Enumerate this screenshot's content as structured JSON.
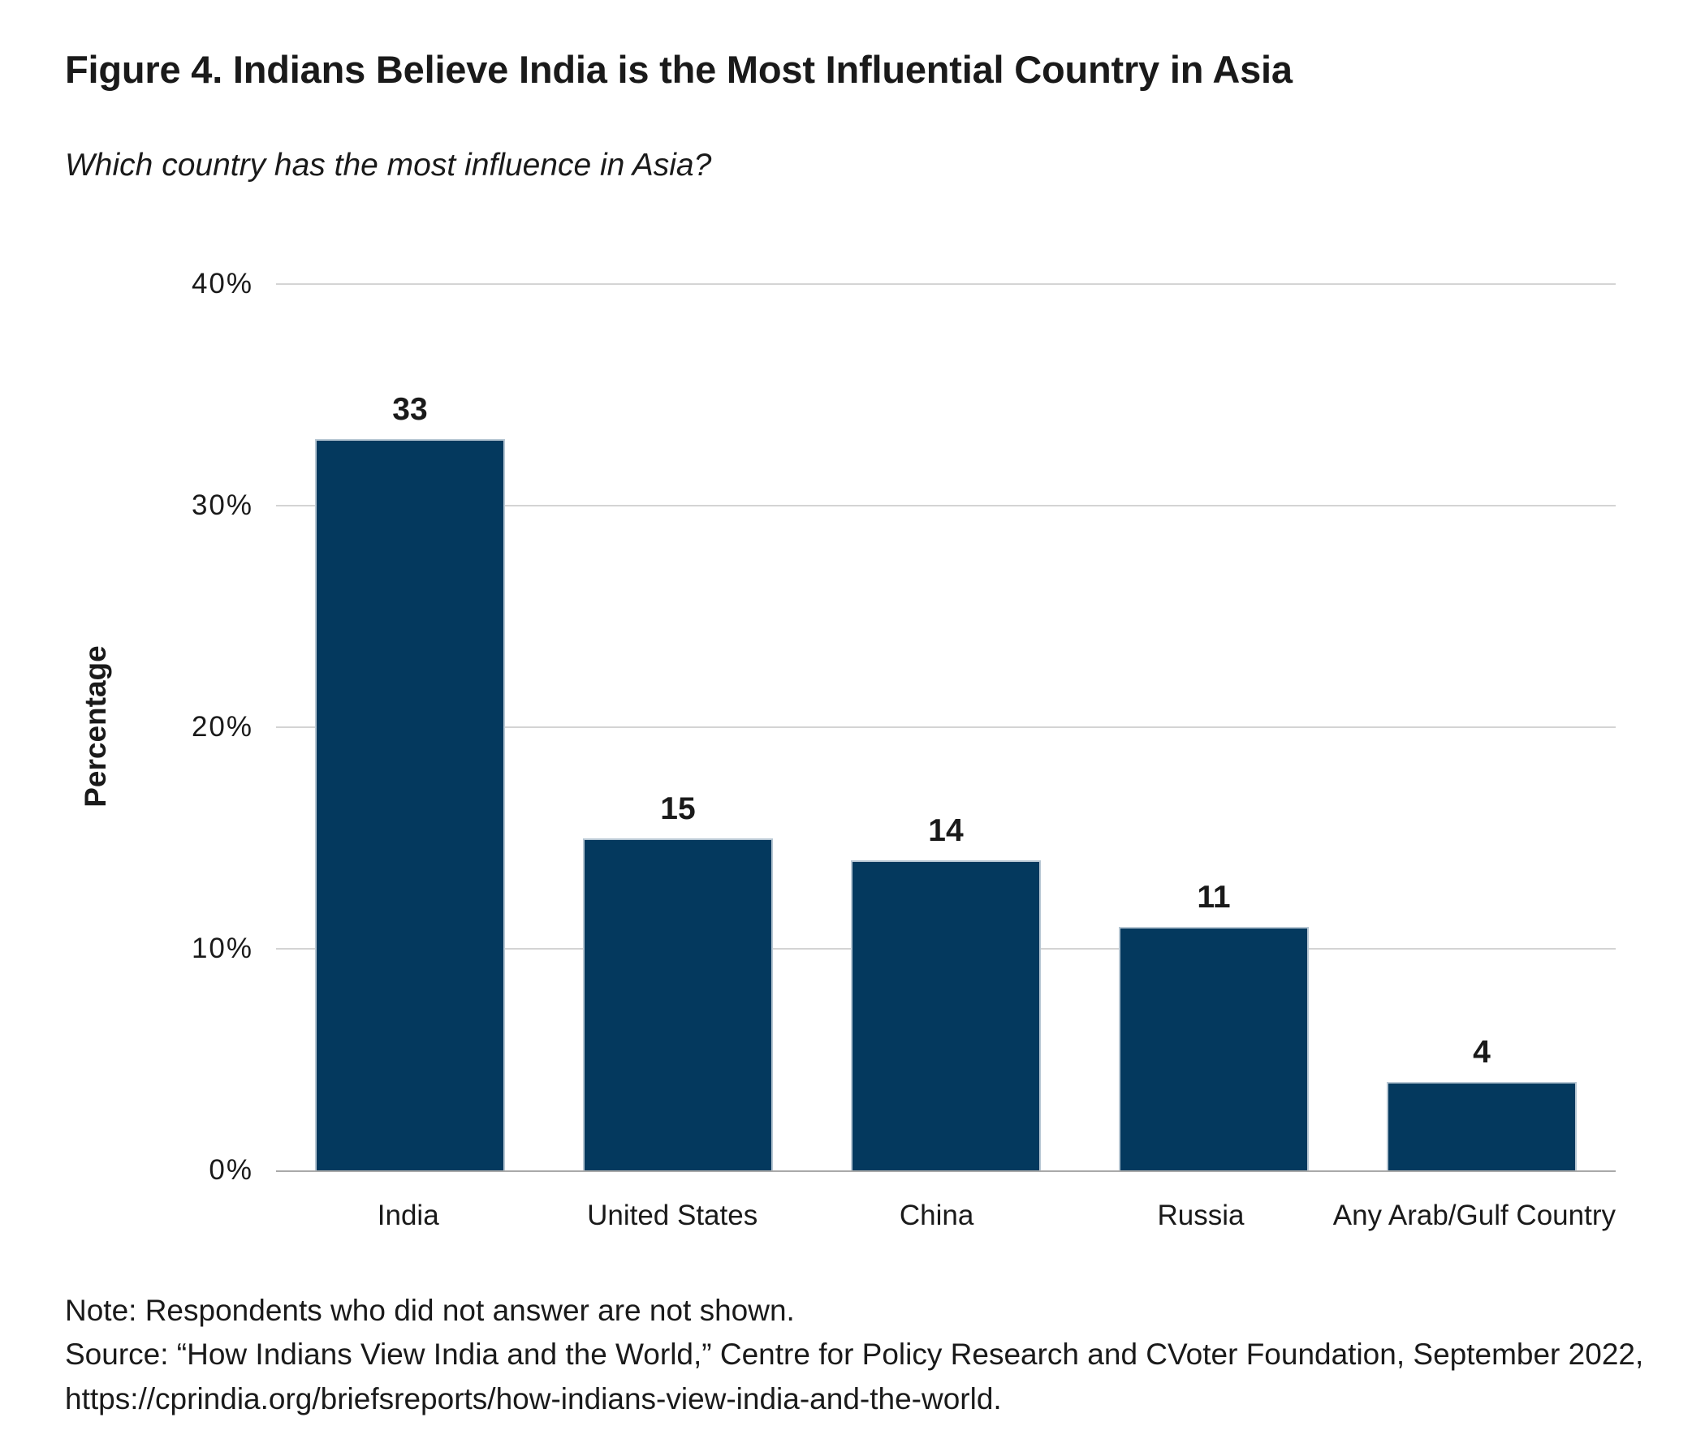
{
  "chart_data": {
    "type": "bar",
    "title": "Figure 4. Indians Believe India is the Most Influential Country in Asia",
    "subtitle": "Which country has the most influence in Asia?",
    "categories": [
      "India",
      "United States",
      "China",
      "Russia",
      "Any Arab/Gulf Country"
    ],
    "values": [
      33,
      15,
      14,
      11,
      4
    ],
    "xlabel": "",
    "ylabel": "Percentage",
    "ylim": [
      0,
      40
    ],
    "yticks": [
      0,
      10,
      20,
      30,
      40
    ],
    "ytick_format": "{v}%",
    "grid": "horizontal",
    "legend": "none",
    "value_labels": true,
    "colors": {
      "bar_fill": "#04395E",
      "bar_border": "#B7C7D3",
      "gridline": "#D4D4D4",
      "axis_line": "#A9A9A9",
      "text": "#1A1A1A"
    }
  },
  "footer": {
    "lines": [
      "Note: Respondents who did not answer are not shown.",
      "Source: “How Indians View India and the World,” Centre for Policy Research and CVoter Foundation, September 2022,",
      "https://cprindia.org/briefsreports/how-indians-view-india-and-the-world."
    ]
  }
}
